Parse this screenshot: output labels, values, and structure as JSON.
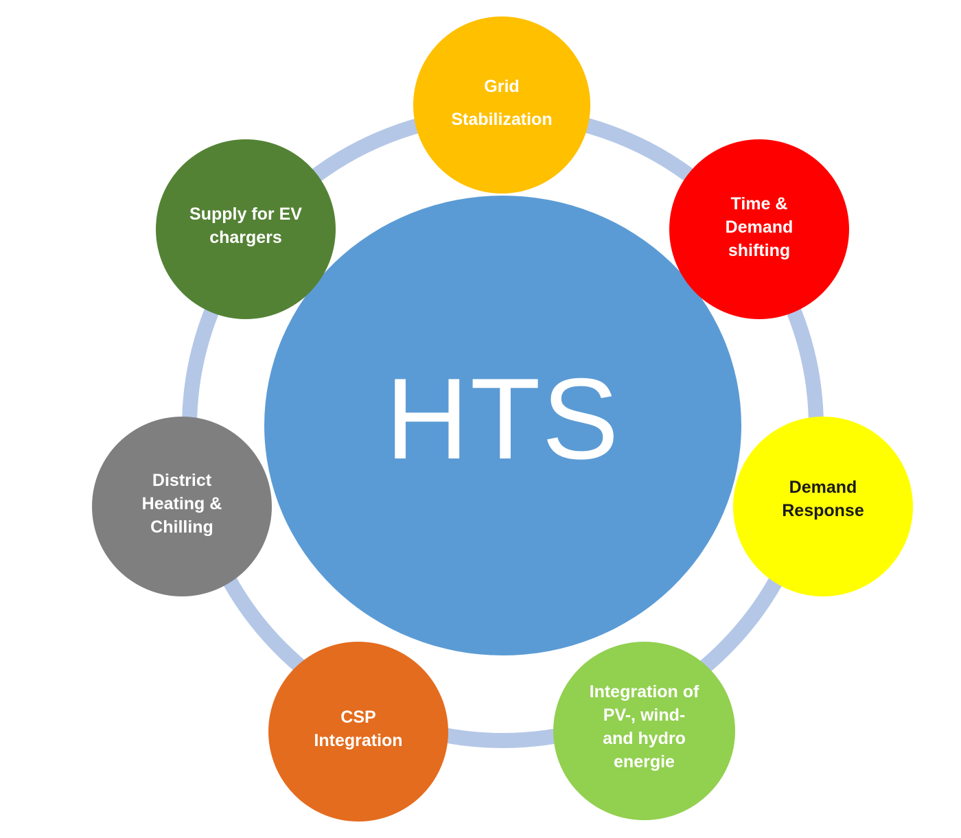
{
  "diagram": {
    "center": {
      "label": "HTS",
      "color": "#5b9bd5"
    },
    "ring_color": "#b4c7e7",
    "nodes": [
      {
        "id": "grid",
        "label": "Grid\nStabilization",
        "color": "#ffc000",
        "text_color": "#ffffff"
      },
      {
        "id": "time",
        "label": "Time &\nDemand\nshifting",
        "color": "#ff0000",
        "text_color": "#ffffff"
      },
      {
        "id": "response",
        "label": "Demand\nResponse",
        "color": "#ffff00",
        "text_color": "#1a1a1a"
      },
      {
        "id": "pv",
        "label": "Integration of\nPV-,  wind-\nand hydro\nenergie",
        "color": "#92d050",
        "text_color": "#ffffff"
      },
      {
        "id": "csp",
        "label": "CSP\nIntegration",
        "color": "#e46c1e",
        "text_color": "#ffffff"
      },
      {
        "id": "district",
        "label": "District\nHeating &\nChilling",
        "color": "#7f7f7f",
        "text_color": "#ffffff"
      },
      {
        "id": "ev",
        "label": "Supply for  EV\nchargers",
        "color": "#548235",
        "text_color": "#ffffff"
      }
    ]
  }
}
